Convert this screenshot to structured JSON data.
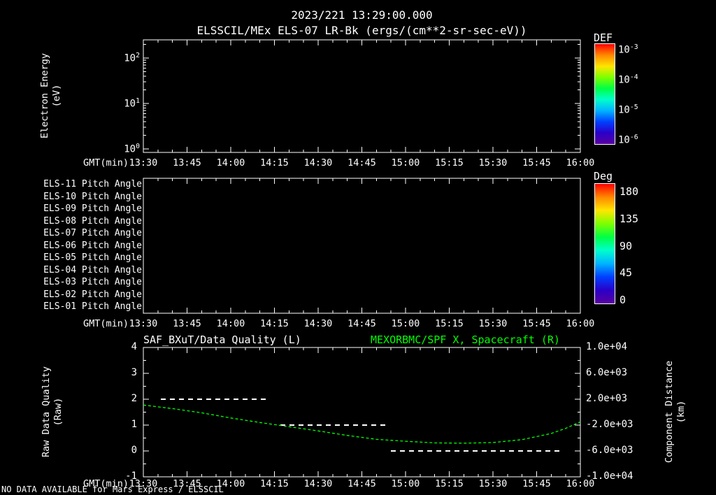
{
  "header": {
    "timestamp": "2023/221 13:29:00.000"
  },
  "status_bar": {
    "message": "NO DATA AVAILABLE for Mars Express / ELSSCIL"
  },
  "colors": {
    "background": "#000000",
    "foreground": "#ffffff",
    "accent_green": "#00ff00",
    "rainbow": [
      "#ff0000",
      "#ff8800",
      "#ffe600",
      "#7dff00",
      "#00ff44",
      "#00ffcc",
      "#00b4ff",
      "#0040ff",
      "#2a00c8",
      "#5a00a0"
    ]
  },
  "chart_data": [
    {
      "type": "heatmap",
      "title": "ELSSCIL/MEx ELS-07 LR-Bk  (ergs/(cm**2-sr-sec-eV))",
      "xlabel": "GMT(min)",
      "ylabel": "Electron Energy (eV)",
      "ylabel_lines": [
        "Electron Energy",
        "(eV)"
      ],
      "x_ticks": [
        "13:30",
        "13:45",
        "14:00",
        "14:15",
        "14:30",
        "14:45",
        "15:00",
        "15:15",
        "15:30",
        "15:45",
        "16:00"
      ],
      "y_scale": "log",
      "y_ticks": [
        "10^2",
        "10^1",
        "10^0"
      ],
      "values": [],
      "no_data": true,
      "colorbar": {
        "title": "DEF",
        "ticks": [
          "10^-3",
          "10^-4",
          "10^-5",
          "10^-6"
        ]
      }
    },
    {
      "type": "heatmap",
      "rows": [
        "ELS-11 Pitch Angle",
        "ELS-10 Pitch Angle",
        "ELS-09 Pitch Angle",
        "ELS-08 Pitch Angle",
        "ELS-07 Pitch Angle",
        "ELS-06 Pitch Angle",
        "ELS-05 Pitch Angle",
        "ELS-04 Pitch Angle",
        "ELS-03 Pitch Angle",
        "ELS-02 Pitch Angle",
        "ELS-01 Pitch Angle"
      ],
      "xlabel": "GMT(min)",
      "x_ticks": [
        "13:30",
        "13:45",
        "14:00",
        "14:15",
        "14:30",
        "14:45",
        "15:00",
        "15:15",
        "15:30",
        "15:45",
        "16:00"
      ],
      "values": [],
      "no_data": true,
      "colorbar": {
        "title": "Deg",
        "ticks": [
          180,
          135,
          90,
          45,
          0
        ],
        "range": [
          0,
          180
        ]
      }
    },
    {
      "type": "line",
      "titles": {
        "left": "SAF_BXuT/Data Quality (L)",
        "right": "MEXORBMC/SPF X, Spacecraft (R)"
      },
      "xlabel": "GMT(min)",
      "x_ticks": [
        "13:30",
        "13:45",
        "14:00",
        "14:15",
        "14:30",
        "14:45",
        "15:00",
        "15:15",
        "15:30",
        "15:45",
        "16:00"
      ],
      "x_range_minutes": [
        0,
        150
      ],
      "left_axis": {
        "label_lines": [
          "Raw Data Quality",
          "(Raw)"
        ],
        "ticks": [
          "4",
          "3",
          "2",
          "1",
          "0",
          "-1"
        ],
        "range": [
          -1,
          4
        ]
      },
      "right_axis": {
        "label_lines": [
          "Component Distance",
          "(km)"
        ],
        "ticks": [
          "1.0e+04",
          "6.0e+03",
          "2.0e+03",
          "-2.0e+03",
          "-6.0e+03",
          "-1.0e+04"
        ],
        "range": [
          -10000,
          10000
        ]
      },
      "series": [
        {
          "name": "SAF_BXuT/Data Quality",
          "axis": "left",
          "color": "#ffffff",
          "line_style": "dashed",
          "segments": [
            {
              "value": 2,
              "start_min": 6,
              "end_min": 43
            },
            {
              "value": 1,
              "start_min": 47,
              "end_min": 84
            },
            {
              "value": 0,
              "start_min": 85,
              "end_min": 143
            }
          ]
        },
        {
          "name": "MEXORBMC/SPF X, Spacecraft",
          "axis": "right",
          "color": "#00ff00",
          "line_style": "dashed",
          "points_min": [
            0,
            10,
            20,
            30,
            40,
            50,
            60,
            70,
            80,
            90,
            100,
            110,
            120,
            130,
            140,
            145,
            150
          ],
          "values_km": [
            1100,
            550,
            -100,
            -900,
            -1600,
            -2250,
            -2900,
            -3600,
            -4200,
            -4500,
            -4750,
            -4800,
            -4700,
            -4250,
            -3300,
            -2500,
            -1500
          ]
        }
      ]
    }
  ]
}
